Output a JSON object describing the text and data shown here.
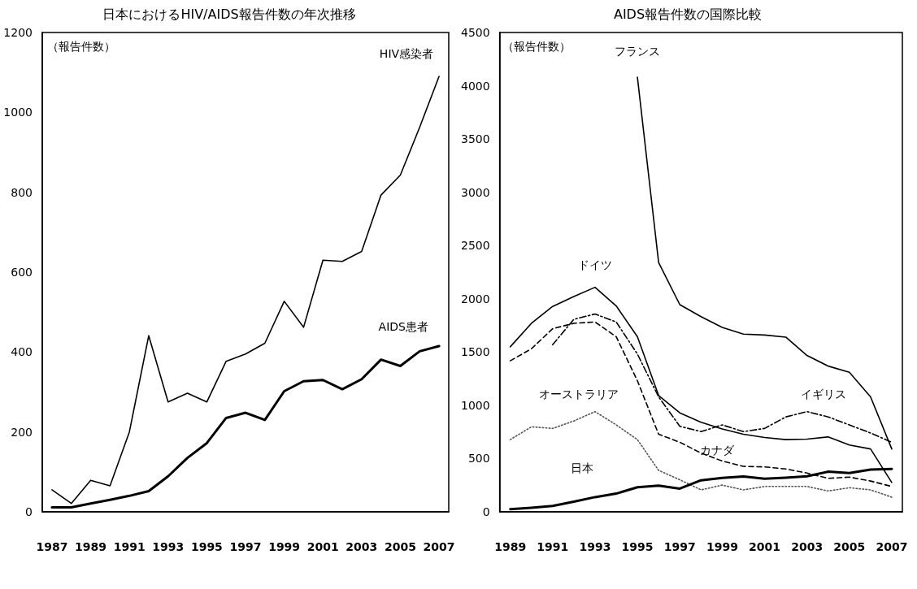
{
  "chart_data": [
    {
      "type": "line",
      "title": "日本におけるHIV/AIDS報告件数の年次推移",
      "ylabel": "（報告件数）",
      "x": [
        1987,
        1988,
        1989,
        1990,
        1991,
        1992,
        1993,
        1994,
        1995,
        1996,
        1997,
        1998,
        1999,
        2000,
        2001,
        2002,
        2003,
        2004,
        2005,
        2006,
        2007
      ],
      "series": [
        {
          "name": "HIV感染者",
          "color": "#000000",
          "line_style": "solid",
          "values": [
            55,
            21,
            79,
            65,
            200,
            441,
            275,
            297,
            275,
            377,
            395,
            422,
            527,
            462,
            630,
            627,
            652,
            793,
            843,
            963,
            1090
          ]
        },
        {
          "name": "AIDS患者",
          "color": "#000000",
          "line_style": "solid",
          "values": [
            11,
            11,
            21,
            30,
            40,
            52,
            89,
            135,
            172,
            235,
            248,
            230,
            302,
            327,
            330,
            307,
            332,
            381,
            365,
            402,
            415
          ]
        }
      ],
      "xlim": [
        1986.5,
        2007.5
      ],
      "xticks": [
        1987,
        1989,
        1991,
        1993,
        1995,
        1997,
        1999,
        2001,
        2003,
        2005,
        2007
      ],
      "ylim": [
        0,
        1200
      ],
      "yticks": [
        0,
        200,
        400,
        600,
        800,
        1000,
        1200
      ],
      "grid": false,
      "marker": "none"
    },
    {
      "type": "line",
      "title": "AIDS報告件数の国際比較",
      "ylabel": "（報告件数）",
      "x": [
        1989,
        1990,
        1991,
        1992,
        1993,
        1994,
        1995,
        1996,
        1997,
        1998,
        1999,
        2000,
        2001,
        2002,
        2003,
        2004,
        2005,
        2006,
        2007
      ],
      "series": [
        {
          "name": "フランス",
          "color": "#000000",
          "line_style": "solid",
          "values": [
            null,
            null,
            null,
            null,
            null,
            null,
            4080,
            2340,
            1945,
            1832,
            1732,
            1669,
            1660,
            1640,
            1468,
            1368,
            1310,
            1079,
            590
          ]
        },
        {
          "name": "ドイツ",
          "color": "#000000",
          "line_style": "solid",
          "values": [
            1549,
            1770,
            1928,
            2021,
            2108,
            1933,
            1644,
            1092,
            929,
            841,
            778,
            728,
            698,
            678,
            683,
            703,
            628,
            590,
            276
          ]
        },
        {
          "name": "イギリス",
          "color": "#000000",
          "line_style": "dashdot",
          "values": [
            null,
            null,
            1569,
            1807,
            1857,
            1782,
            1481,
            1079,
            803,
            753,
            816,
            753,
            783,
            891,
            941,
            891,
            816,
            740,
            653
          ]
        },
        {
          "name": "カナダ",
          "color": "#000000",
          "line_style": "dashed",
          "values": [
            1418,
            1531,
            1719,
            1770,
            1782,
            1644,
            1230,
            728,
            653,
            552,
            477,
            427,
            422,
            402,
            364,
            314,
            326,
            289,
            238
          ]
        },
        {
          "name": "オーストラリア",
          "color": "#555555",
          "line_style": "dotted",
          "values": [
            678,
            798,
            783,
            853,
            941,
            816,
            678,
            389,
            301,
            206,
            251,
            206,
            238,
            238,
            238,
            196,
            226,
            206,
            138
          ]
        },
        {
          "name": "日本",
          "color": "#000000",
          "line_style": "solid",
          "values": [
            25,
            38,
            55,
            95,
            138,
            171,
            231,
            246,
            218,
            296,
            319,
            331,
            311,
            321,
            334,
            377,
            364,
            397,
            402
          ]
        }
      ],
      "xlim": [
        1988.5,
        2007.5
      ],
      "xticks": [
        1989,
        1991,
        1993,
        1995,
        1997,
        1999,
        2001,
        2003,
        2005,
        2007
      ],
      "ylim": [
        0,
        4500
      ],
      "yticks": [
        0,
        500,
        1000,
        1500,
        2000,
        2500,
        3000,
        3500,
        4000,
        4500
      ],
      "grid": false,
      "marker": "none"
    }
  ]
}
